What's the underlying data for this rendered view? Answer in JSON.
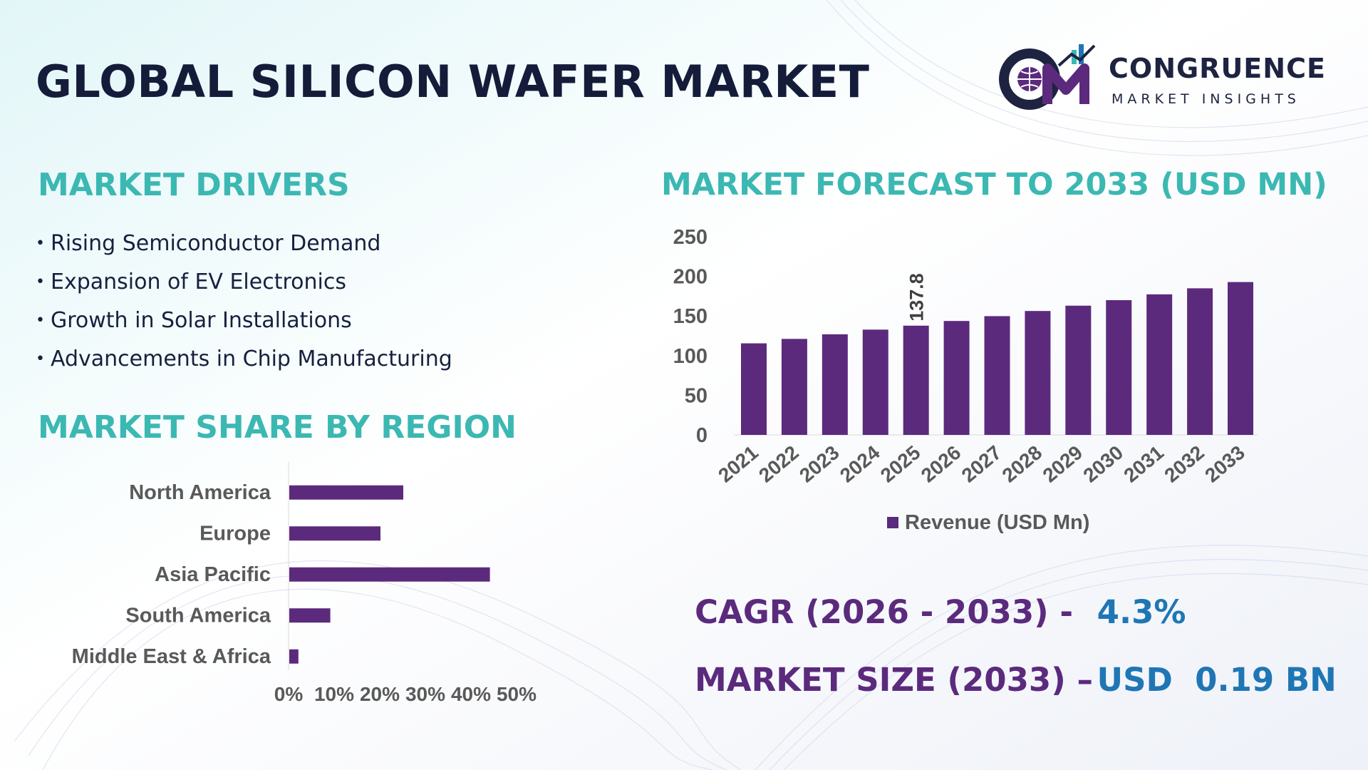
{
  "title": "GLOBAL SILICON WAFER MARKET",
  "logo": {
    "name": "CONGRUENCE",
    "tagline": "MARKET INSIGHTS"
  },
  "drivers": {
    "heading": "MARKET DRIVERS",
    "items": [
      "Rising Semiconductor Demand",
      "Expansion of EV Electronics",
      "Growth in Solar Installations",
      "Advancements in Chip Manufacturing"
    ]
  },
  "region": {
    "heading": "MARKET SHARE BY REGION"
  },
  "forecast": {
    "heading": "MARKET FORECAST TO 2033 (USD MN)"
  },
  "kpis": {
    "cagr_label": "CAGR (2026 - 2033) -",
    "cagr_value": "4.3%",
    "size_label": "MARKET SIZE (2033) –",
    "size_value": "USD  0.19 BN"
  },
  "colors": {
    "bar": "#5b2a7d",
    "heading": "#3cb8b3",
    "title": "#141c3a",
    "kpi_value": "#1f76b4"
  },
  "chart_data": [
    {
      "type": "bar",
      "orientation": "horizontal",
      "categories": [
        "North America",
        "Europe",
        "Asia Pacific",
        "South America",
        "Middle East & Africa"
      ],
      "values": [
        25,
        20,
        44,
        9,
        2
      ],
      "x_tick_labels": [
        "0%",
        "10%",
        "20%",
        "30%",
        "40%",
        "50%"
      ],
      "xlim": [
        0,
        50
      ],
      "grid": false
    },
    {
      "type": "bar",
      "orientation": "vertical",
      "categories": [
        "2021",
        "2022",
        "2023",
        "2024",
        "2025",
        "2026",
        "2027",
        "2028",
        "2029",
        "2030",
        "2031",
        "2032",
        "2033"
      ],
      "series": [
        {
          "name": "Revenue (USD Mn)",
          "values": [
            115.5,
            121.1,
            126.9,
            132.8,
            137.8,
            143.7,
            149.8,
            156.3,
            163.0,
            170.0,
            177.3,
            184.9,
            192.8
          ]
        }
      ],
      "data_labels": [
        {
          "category": "2025",
          "text": "137.8"
        }
      ],
      "y_ticks": [
        0,
        50,
        100,
        150,
        200,
        250
      ],
      "ylim": [
        0,
        250
      ],
      "legend": "bottom",
      "grid": false
    }
  ]
}
